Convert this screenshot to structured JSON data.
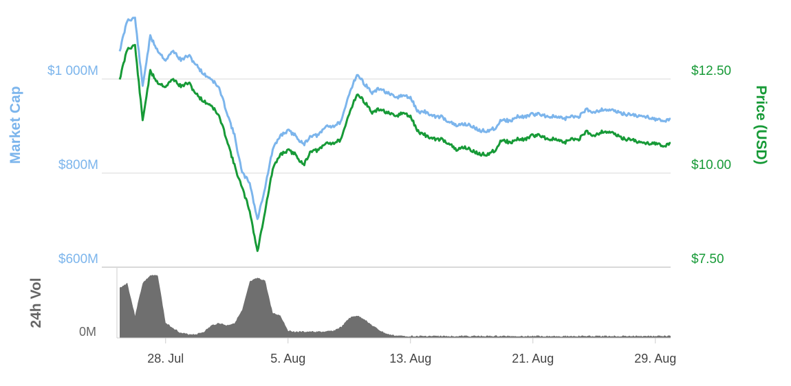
{
  "chart_data": {
    "type": "line",
    "axes": {
      "left": {
        "title": "Market Cap",
        "ticks": [
          {
            "value": 600,
            "label": "$600M"
          },
          {
            "value": 800,
            "label": "$800M"
          },
          {
            "value": 1000,
            "label": "$1 000M"
          }
        ],
        "range": [
          600,
          1000
        ]
      },
      "right": {
        "title": "Price (USD)",
        "ticks": [
          {
            "value": 7.5,
            "label": "$7.50"
          },
          {
            "value": 10,
            "label": "$10.00"
          },
          {
            "value": 12.5,
            "label": "$12.50"
          }
        ],
        "range": [
          7.5,
          12.5
        ]
      },
      "volume": {
        "title": "24h Vol",
        "ticks": [
          {
            "value": 0,
            "label": "0M"
          }
        ]
      },
      "x": {
        "ticks": [
          {
            "value": "2017-07-28",
            "label": "28. Jul"
          },
          {
            "value": "2017-08-05",
            "label": "5. Aug"
          },
          {
            "value": "2017-08-13",
            "label": "13. Aug"
          },
          {
            "value": "2017-08-21",
            "label": "21. Aug"
          },
          {
            "value": "2017-08-29",
            "label": "29. Aug"
          }
        ],
        "range": [
          "2017-07-25",
          "2017-08-30"
        ]
      }
    },
    "colors": {
      "market_cap": "#7cb5ec",
      "price": "#179a37",
      "volume": "#6f6f6f",
      "grid": "#d9d9d9"
    },
    "grid": true,
    "x": [
      "2017-07-25",
      "2017-07-25 12:00",
      "2017-07-26",
      "2017-07-26 12:00",
      "2017-07-27",
      "2017-07-27 12:00",
      "2017-07-28",
      "2017-07-28 12:00",
      "2017-07-29",
      "2017-07-29 12:00",
      "2017-07-30",
      "2017-07-30 12:00",
      "2017-07-31",
      "2017-07-31 12:00",
      "2017-08-01",
      "2017-08-01 12:00",
      "2017-08-02",
      "2017-08-02 12:00",
      "2017-08-03",
      "2017-08-03 12:00",
      "2017-08-04",
      "2017-08-04 12:00",
      "2017-08-05",
      "2017-08-05 12:00",
      "2017-08-06",
      "2017-08-06 12:00",
      "2017-08-07",
      "2017-08-07 12:00",
      "2017-08-08",
      "2017-08-08 12:00",
      "2017-08-09",
      "2017-08-09 12:00",
      "2017-08-10",
      "2017-08-10 12:00",
      "2017-08-11",
      "2017-08-11 12:00",
      "2017-08-12",
      "2017-08-12 12:00",
      "2017-08-13",
      "2017-08-13 12:00",
      "2017-08-14",
      "2017-08-14 12:00",
      "2017-08-15",
      "2017-08-15 12:00",
      "2017-08-16",
      "2017-08-16 12:00",
      "2017-08-17",
      "2017-08-17 12:00",
      "2017-08-18",
      "2017-08-18 12:00",
      "2017-08-19",
      "2017-08-19 12:00",
      "2017-08-20",
      "2017-08-20 12:00",
      "2017-08-21",
      "2017-08-21 12:00",
      "2017-08-22",
      "2017-08-22 12:00",
      "2017-08-23",
      "2017-08-23 12:00",
      "2017-08-24",
      "2017-08-24 12:00",
      "2017-08-25",
      "2017-08-25 12:00",
      "2017-08-26",
      "2017-08-26 12:00",
      "2017-08-27",
      "2017-08-27 12:00",
      "2017-08-28",
      "2017-08-28 12:00",
      "2017-08-29",
      "2017-08-29 12:00",
      "2017-08-30"
    ],
    "series": [
      {
        "name": "Market Cap",
        "axis": "left",
        "values": [
          1060,
          1125,
          1130,
          985,
          1090,
          1060,
          1040,
          1060,
          1040,
          1050,
          1030,
          1010,
          1000,
          980,
          930,
          880,
          800,
          780,
          700,
          770,
          850,
          880,
          890,
          880,
          860,
          880,
          880,
          900,
          900,
          910,
          970,
          1010,
          990,
          970,
          980,
          970,
          960,
          965,
          960,
          930,
          930,
          920,
          920,
          910,
          900,
          905,
          900,
          890,
          890,
          895,
          915,
          910,
          920,
          920,
          925,
          925,
          920,
          920,
          915,
          920,
          920,
          935,
          930,
          935,
          935,
          930,
          925,
          925,
          920,
          920,
          915,
          910,
          915
        ]
      },
      {
        "name": "Price (USD)",
        "axis": "right",
        "values": [
          12.5,
          13.3,
          13.4,
          11.4,
          12.7,
          12.4,
          12.3,
          12.5,
          12.3,
          12.4,
          12.1,
          11.9,
          11.8,
          11.5,
          10.9,
          10.2,
          9.6,
          9.0,
          7.9,
          9.0,
          10.1,
          10.5,
          10.6,
          10.5,
          10.2,
          10.6,
          10.6,
          10.8,
          10.8,
          10.9,
          11.6,
          12.1,
          11.9,
          11.6,
          11.7,
          11.6,
          11.5,
          11.6,
          11.5,
          11.1,
          11.0,
          10.9,
          10.9,
          10.8,
          10.6,
          10.7,
          10.6,
          10.5,
          10.5,
          10.6,
          10.9,
          10.8,
          10.9,
          10.9,
          11.0,
          11.0,
          10.9,
          10.9,
          10.8,
          10.9,
          10.9,
          11.1,
          11.0,
          11.1,
          11.1,
          11.0,
          10.9,
          10.9,
          10.8,
          10.8,
          10.8,
          10.7,
          10.8
        ]
      },
      {
        "name": "24h Vol",
        "axis": "volume",
        "values": [
          40,
          44,
          18,
          44,
          50,
          50,
          12,
          8,
          4,
          3,
          3,
          5,
          10,
          12,
          10,
          12,
          22,
          45,
          48,
          46,
          20,
          18,
          6,
          5,
          5,
          5,
          5,
          5,
          6,
          9,
          16,
          18,
          15,
          10,
          6,
          3,
          2,
          1.5,
          1.5,
          1.5,
          1.5,
          1.5,
          1.5,
          1.5,
          1.5,
          1.5,
          1.5,
          1.5,
          1.5,
          1.5,
          1.5,
          1.5,
          1.5,
          1.5,
          1.5,
          1.5,
          1.5,
          1.5,
          1.5,
          1.5,
          1.5,
          1.5,
          1.5,
          1.5,
          1.5,
          1.5,
          1.5,
          1.5,
          1.5,
          1.5,
          1.5,
          1.5,
          1.5
        ]
      }
    ]
  }
}
